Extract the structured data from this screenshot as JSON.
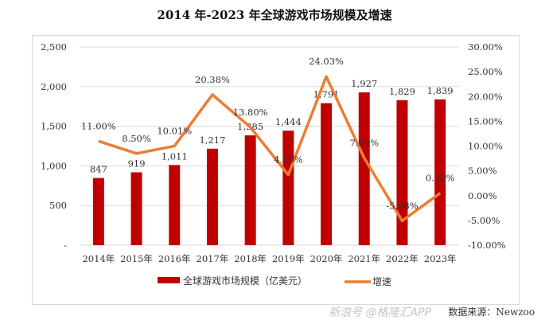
{
  "chart_data": {
    "type": "bar+line",
    "title": "2014 年-2023 年全球游戏市场规模及增速",
    "categories": [
      "2014年",
      "2015年",
      "2016年",
      "2017年",
      "2018年",
      "2019年",
      "2020年",
      "2021年",
      "2022年",
      "2023年"
    ],
    "series": [
      {
        "name": "全球游戏市场规模（亿美元）",
        "type": "bar",
        "axis": "left",
        "color": "#c00000",
        "values": [
          847,
          919,
          1011,
          1217,
          1385,
          1444,
          1791,
          1927,
          1829,
          1839
        ],
        "labels": [
          "847",
          "919",
          "1,011",
          "1,217",
          "1,385",
          "1,444",
          "1,791",
          "1,927",
          "1,829",
          "1,839"
        ]
      },
      {
        "name": "增速",
        "type": "line",
        "axis": "right",
        "color": "#ed7d31",
        "values": [
          11.0,
          8.5,
          10.01,
          20.38,
          13.8,
          4.2,
          24.03,
          7.59,
          -5.08,
          0.5
        ],
        "labels": [
          "11.00%",
          "8.50%",
          "10.01%",
          "20.38%",
          "13.80%",
          "4.20%",
          "24.03%",
          "7.59%",
          "-5.08%",
          "0.50%"
        ]
      }
    ],
    "left_axis": {
      "range": [
        0,
        2500
      ],
      "ticks": [
        2500,
        2000,
        1500,
        1000,
        500,
        0
      ],
      "tick_labels": [
        "2,500",
        "2,000",
        "1,500",
        "1,000",
        "500",
        "-"
      ]
    },
    "right_axis": {
      "range": [
        -10,
        30
      ],
      "ticks": [
        30,
        25,
        20,
        15,
        10,
        5,
        0,
        -5,
        -10
      ],
      "tick_labels": [
        "30.00%",
        "25.00%",
        "20.00%",
        "15.00%",
        "10.00%",
        "5.00%",
        "0.00%",
        "-5.00%",
        "-10.00%"
      ]
    },
    "legend_position": "bottom"
  },
  "source": "数据来源：Newzoo",
  "watermark": "新浪号 @格隆汇APP"
}
